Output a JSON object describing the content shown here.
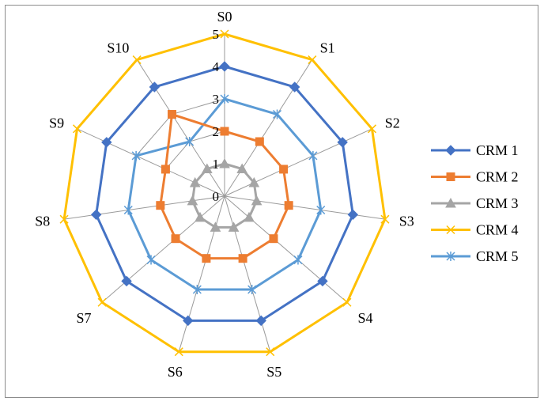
{
  "chart_data": {
    "type": "radar",
    "categories": [
      "S0",
      "S1",
      "S2",
      "S3",
      "S4",
      "S5",
      "S6",
      "S7",
      "S8",
      "S9",
      "S10"
    ],
    "rlim": [
      0,
      5
    ],
    "rticks": [
      "0",
      "1",
      "2",
      "3",
      "4",
      "5"
    ],
    "grid": true,
    "legend_position": "right",
    "series": [
      {
        "name": "CRM 1",
        "color": "#4472C4",
        "marker": "diamond",
        "values": [
          4,
          4,
          4,
          4,
          4,
          4,
          4,
          4,
          4,
          4,
          4
        ]
      },
      {
        "name": "CRM 2",
        "color": "#ED7D31",
        "marker": "square",
        "values": [
          2,
          2,
          2,
          2,
          2,
          2,
          2,
          2,
          2,
          2,
          3
        ]
      },
      {
        "name": "CRM 3",
        "color": "#A5A5A5",
        "marker": "triangle",
        "values": [
          1,
          1,
          1,
          1,
          1,
          1,
          1,
          1,
          1,
          1,
          1
        ]
      },
      {
        "name": "CRM 4",
        "color": "#FFC000",
        "marker": "x",
        "values": [
          5,
          5,
          5,
          5,
          5,
          5,
          5,
          5,
          5,
          5,
          5
        ]
      },
      {
        "name": "CRM 5",
        "color": "#5B9BD5",
        "marker": "asterisk",
        "values": [
          3,
          3,
          3,
          3,
          3,
          3,
          3,
          3,
          3,
          3,
          2
        ]
      }
    ]
  }
}
